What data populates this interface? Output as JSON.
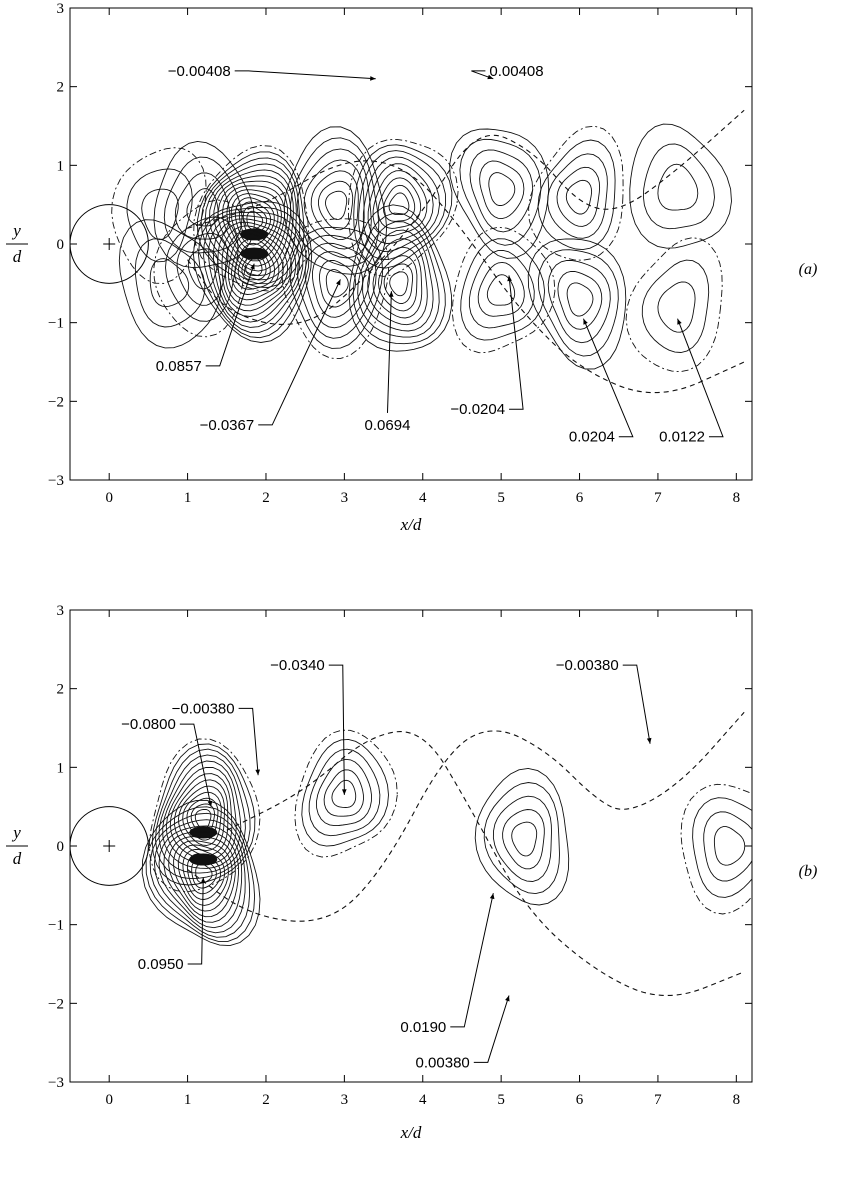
{
  "chart_data": [
    {
      "type": "contour",
      "panel_label": "(a)",
      "xlabel": "x/d",
      "ylabel_num": "y",
      "ylabel_den": "d",
      "xlim": [
        -0.5,
        8.2
      ],
      "ylim": [
        -3,
        3
      ],
      "x_ticks": [
        "0",
        "1",
        "2",
        "3",
        "4",
        "5",
        "6",
        "7",
        "8"
      ],
      "y_ticks": [
        "3",
        "2",
        "1",
        "0",
        "−1",
        "−2",
        "−3"
      ],
      "cylinder": {
        "cx": 0,
        "cy": 0,
        "r": 0.5
      },
      "annotations": [
        {
          "text": "−0.00408",
          "x": 3.4,
          "y": 2.1
        },
        {
          "text": "0.00408",
          "x": 4.9,
          "y": 2.1
        },
        {
          "text": "0.0857",
          "x": 1.85,
          "y": -0.25
        },
        {
          "text": "−0.0367",
          "x": 2.95,
          "y": -0.45
        },
        {
          "text": "0.0694",
          "x": 3.6,
          "y": -0.6
        },
        {
          "text": "−0.0204",
          "x": 5.1,
          "y": -0.4
        },
        {
          "text": "0.0204",
          "x": 6.05,
          "y": -0.95
        },
        {
          "text": "0.0122",
          "x": 7.25,
          "y": -0.95
        }
      ],
      "vortices": [
        {
          "x": 0.65,
          "y": 0.4,
          "sign": -1,
          "levels": 3
        },
        {
          "x": 0.75,
          "y": -0.5,
          "sign": 1,
          "levels": 3
        },
        {
          "x": 1.2,
          "y": 0.45,
          "sign": 1,
          "levels": 4
        },
        {
          "x": 1.2,
          "y": -0.3,
          "sign": -1,
          "levels": 4
        },
        {
          "x": 1.85,
          "y": 0.3,
          "sign": -1,
          "levels": 14
        },
        {
          "x": 1.85,
          "y": -0.3,
          "sign": 1,
          "levels": 14
        },
        {
          "x": 2.9,
          "y": 0.5,
          "sign": 1,
          "levels": 7
        },
        {
          "x": 2.9,
          "y": -0.5,
          "sign": -1,
          "levels": 7
        },
        {
          "x": 3.7,
          "y": 0.5,
          "sign": -1,
          "levels": 9
        },
        {
          "x": 3.7,
          "y": -0.5,
          "sign": 1,
          "levels": 9
        },
        {
          "x": 5.0,
          "y": 0.7,
          "sign": 1,
          "levels": 5
        },
        {
          "x": 5.0,
          "y": -0.6,
          "sign": -1,
          "levels": 5
        },
        {
          "x": 6.0,
          "y": 0.6,
          "sign": -1,
          "levels": 5
        },
        {
          "x": 6.0,
          "y": -0.7,
          "sign": 1,
          "levels": 5
        },
        {
          "x": 7.25,
          "y": 0.7,
          "sign": 1,
          "levels": 3
        },
        {
          "x": 7.25,
          "y": -0.8,
          "sign": -1,
          "levels": 3
        }
      ],
      "trajectory": [
        [
          1.0,
          -0.2
        ],
        [
          1.5,
          -0.9
        ],
        [
          2.5,
          -1.1
        ],
        [
          3.3,
          -0.4
        ],
        [
          4.0,
          0.4
        ],
        [
          4.7,
          1.5
        ],
        [
          5.4,
          1.2
        ],
        [
          6.0,
          0.5
        ],
        [
          6.5,
          0.4
        ],
        [
          7.2,
          0.9
        ],
        [
          8.1,
          1.7
        ]
      ],
      "trajectory2": [
        [
          1.0,
          0.2
        ],
        [
          2.0,
          0.5
        ],
        [
          3.0,
          1.1
        ],
        [
          3.8,
          1.0
        ],
        [
          4.5,
          0.2
        ],
        [
          5.2,
          -0.8
        ],
        [
          6.0,
          -1.6
        ],
        [
          7.0,
          -2.0
        ],
        [
          8.1,
          -1.5
        ]
      ]
    },
    {
      "type": "contour",
      "panel_label": "(b)",
      "xlabel": "x/d",
      "ylabel_num": "y",
      "ylabel_den": "d",
      "xlim": [
        -0.5,
        8.2
      ],
      "ylim": [
        -3,
        3
      ],
      "x_ticks": [
        "0",
        "1",
        "2",
        "3",
        "4",
        "5",
        "6",
        "7",
        "8"
      ],
      "y_ticks": [
        "3",
        "2",
        "1",
        "0",
        "−1",
        "−2",
        "−3"
      ],
      "cylinder": {
        "cx": 0,
        "cy": 0,
        "r": 0.5
      },
      "annotations": [
        {
          "text": "−0.0340",
          "x": 3.0,
          "y": 0.65
        },
        {
          "text": "−0.00380",
          "x": 1.9,
          "y": 0.9
        },
        {
          "text": "−0.0800",
          "x": 1.3,
          "y": 0.5
        },
        {
          "text": "−0.00380",
          "x": 6.9,
          "y": 1.3
        },
        {
          "text": "0.0950",
          "x": 1.2,
          "y": -0.4
        },
        {
          "text": "0.0190",
          "x": 4.9,
          "y": -0.6
        },
        {
          "text": "0.00380",
          "x": 5.1,
          "y": -1.9
        }
      ],
      "vortices": [
        {
          "x": 1.2,
          "y": 0.35,
          "sign": -1,
          "levels": 13
        },
        {
          "x": 1.2,
          "y": -0.35,
          "sign": 1,
          "levels": 13
        },
        {
          "x": 3.0,
          "y": 0.65,
          "sign": -1,
          "levels": 6
        },
        {
          "x": 5.3,
          "y": 0.1,
          "sign": 1,
          "levels": 5
        },
        {
          "x": 7.9,
          "y": 0.0,
          "sign": -1,
          "levels": 4
        }
      ],
      "trajectory": [
        [
          1.0,
          -0.3
        ],
        [
          1.8,
          -0.9
        ],
        [
          2.8,
          -1.0
        ],
        [
          3.5,
          -0.3
        ],
        [
          4.3,
          1.2
        ],
        [
          4.9,
          1.55
        ],
        [
          5.6,
          1.2
        ],
        [
          6.2,
          0.6
        ],
        [
          6.6,
          0.4
        ],
        [
          7.3,
          0.8
        ],
        [
          8.1,
          1.7
        ]
      ],
      "trajectory2": [
        [
          1.5,
          0.2
        ],
        [
          2.5,
          0.7
        ],
        [
          3.3,
          1.4
        ],
        [
          4.0,
          1.5
        ],
        [
          4.6,
          0.5
        ],
        [
          5.3,
          -0.8
        ],
        [
          6.2,
          -1.6
        ],
        [
          7.1,
          -2.0
        ],
        [
          8.1,
          -1.6
        ]
      ]
    }
  ]
}
